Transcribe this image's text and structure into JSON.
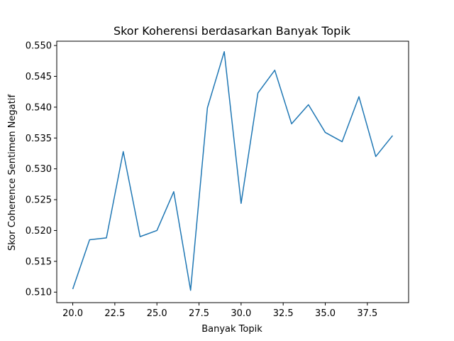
{
  "chart_data": {
    "type": "line",
    "title": "Skor Koherensi berdasarkan Banyak Topik",
    "xlabel": "Banyak Topik",
    "ylabel": "Skor Coherence Sentimen Negatif",
    "xlim": [
      19.05,
      39.95
    ],
    "ylim": [
      0.5083,
      0.5507
    ],
    "xticks": [
      20.0,
      22.5,
      25.0,
      27.5,
      30.0,
      32.5,
      35.0,
      37.5
    ],
    "xtick_labels": [
      "20.0",
      "22.5",
      "25.0",
      "27.5",
      "30.0",
      "32.5",
      "35.0",
      "37.5"
    ],
    "yticks": [
      0.51,
      0.515,
      0.52,
      0.525,
      0.53,
      0.535,
      0.54,
      0.545,
      0.55
    ],
    "ytick_labels": [
      "0.510",
      "0.515",
      "0.520",
      "0.525",
      "0.530",
      "0.535",
      "0.540",
      "0.545",
      "0.550"
    ],
    "grid": false,
    "series": [
      {
        "color": "#1f77b4",
        "x": [
          20,
          21,
          22,
          23,
          24,
          25,
          26,
          27,
          28,
          29,
          30,
          31,
          32,
          33,
          34,
          35,
          36,
          37,
          38,
          39
        ],
        "values": [
          0.5105,
          0.5185,
          0.5188,
          0.5328,
          0.519,
          0.52,
          0.5263,
          0.5103,
          0.5399,
          0.549,
          0.5244,
          0.5423,
          0.546,
          0.5373,
          0.5404,
          0.5359,
          0.5344,
          0.5417,
          0.532,
          0.5354
        ]
      }
    ]
  }
}
